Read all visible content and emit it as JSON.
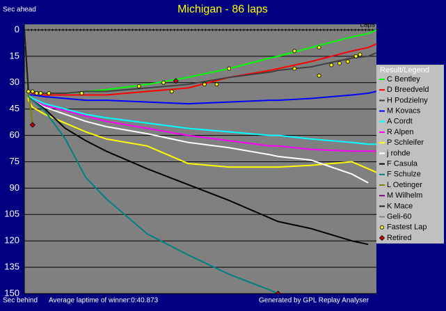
{
  "chart_data": {
    "type": "line",
    "title": "Michigan - 86 laps",
    "y_label_top": "Sec ahead",
    "y_label_bottom": "Sec behind",
    "x_label": "Laps",
    "footer_left": "Average laptime of winner:0:40.873",
    "footer_right": "Generated by GPL Replay Analyser",
    "legend_title": "Result/Legend",
    "legend": "right",
    "grid": true,
    "y_inverted": true,
    "xlim": [
      0,
      86
    ],
    "ylim": [
      0,
      150
    ],
    "yticks": [
      0,
      15,
      30,
      45,
      60,
      75,
      90,
      105,
      120,
      135,
      150
    ],
    "x": [
      0,
      1,
      2,
      5,
      10,
      15,
      20,
      30,
      40,
      50,
      60,
      62,
      70,
      80,
      84,
      86
    ],
    "series": [
      {
        "name": "C Bentley",
        "color": "#00ff00",
        "values": [
          0,
          35,
          35,
          36,
          36,
          35,
          34,
          31,
          27,
          22,
          16,
          15,
          10,
          4,
          2,
          0
        ]
      },
      {
        "name": "D Breedveld",
        "color": "#ff0000",
        "values": [
          0,
          35,
          36,
          37,
          37,
          37,
          37,
          35,
          33,
          27,
          23,
          22,
          18,
          12,
          10,
          8
        ]
      },
      {
        "name": "H Podzielny",
        "color": "#404040",
        "values": [
          0,
          35,
          35,
          36,
          36,
          35,
          35,
          33,
          31,
          27,
          24,
          23,
          21,
          16,
          15,
          13
        ]
      },
      {
        "name": "M Kovacs",
        "color": "#0000ff",
        "values": [
          0,
          37,
          37,
          38,
          39,
          40,
          40,
          41,
          42,
          41,
          40,
          40,
          39,
          37,
          36,
          35
        ]
      },
      {
        "name": "A Cordt",
        "color": "#00ffff",
        "values": [
          0,
          37,
          39,
          42,
          45,
          48,
          50,
          53,
          56,
          58,
          60,
          60,
          62,
          64,
          65,
          65
        ]
      },
      {
        "name": "R Alpen",
        "color": "#ff00ff",
        "values": [
          0,
          38,
          40,
          43,
          46,
          49,
          52,
          56,
          60,
          63,
          66,
          66,
          68,
          69,
          69,
          69
        ]
      },
      {
        "name": "P Schleifer",
        "color": "#ffff00",
        "values": [
          0,
          40,
          44,
          48,
          53,
          58,
          62,
          66,
          76,
          78,
          78,
          78,
          77,
          75,
          79,
          81
        ]
      },
      {
        "name": "j rohde",
        "color": "#ffffff",
        "values": [
          0,
          38,
          40,
          44,
          48,
          52,
          55,
          59,
          64,
          67,
          71,
          72,
          74,
          82,
          87,
          null
        ]
      },
      {
        "name": "F Casula",
        "color": "#000000",
        "values": [
          0,
          38,
          40,
          45,
          56,
          63,
          69,
          79,
          88,
          97,
          107,
          109,
          113,
          120,
          122,
          null
        ]
      },
      {
        "name": "F Schulze",
        "color": "#008080",
        "values": [
          0,
          38,
          40,
          46,
          62,
          84,
          96,
          116,
          128,
          139,
          148,
          150,
          null,
          null,
          null,
          null
        ]
      },
      {
        "name": "L Oetinger",
        "color": "#808000",
        "values": [
          0,
          35,
          54,
          null,
          null,
          null,
          null,
          null,
          null,
          null,
          null,
          null,
          null,
          null,
          null,
          null
        ]
      },
      {
        "name": "M Wilhelm",
        "color": "#800080",
        "values": [
          0,
          35,
          null,
          null,
          null,
          null,
          null,
          null,
          null,
          null,
          null,
          null,
          null,
          null,
          null,
          null
        ]
      },
      {
        "name": "K Mace",
        "color": "#202020",
        "values": [
          0,
          35,
          null,
          null,
          null,
          null,
          null,
          null,
          null,
          null,
          null,
          null,
          null,
          null,
          null,
          null
        ]
      },
      {
        "name": "Geli-60",
        "color": "#808080",
        "values": [
          0,
          null,
          null,
          null,
          null,
          null,
          null,
          null,
          null,
          null,
          null,
          null,
          null,
          null,
          null,
          null
        ]
      }
    ],
    "markers": [
      {
        "name": "Fastest Lap",
        "color": "#ffff00",
        "shape": "circle",
        "x": [
          1,
          2,
          3,
          4,
          6,
          14,
          28,
          34,
          36,
          44,
          47,
          50,
          66,
          72,
          66,
          72,
          75,
          77,
          79,
          81,
          82
        ],
        "y": [
          35,
          35,
          36,
          36,
          36,
          36,
          32,
          30,
          35,
          31,
          31,
          22,
          22,
          26,
          12,
          10,
          20,
          19,
          18,
          15,
          14
        ]
      },
      {
        "name": "Retired",
        "color": "#cc0000",
        "shape": "diamond",
        "x": [
          2,
          37,
          62
        ],
        "y": [
          54,
          29,
          150
        ]
      }
    ]
  }
}
